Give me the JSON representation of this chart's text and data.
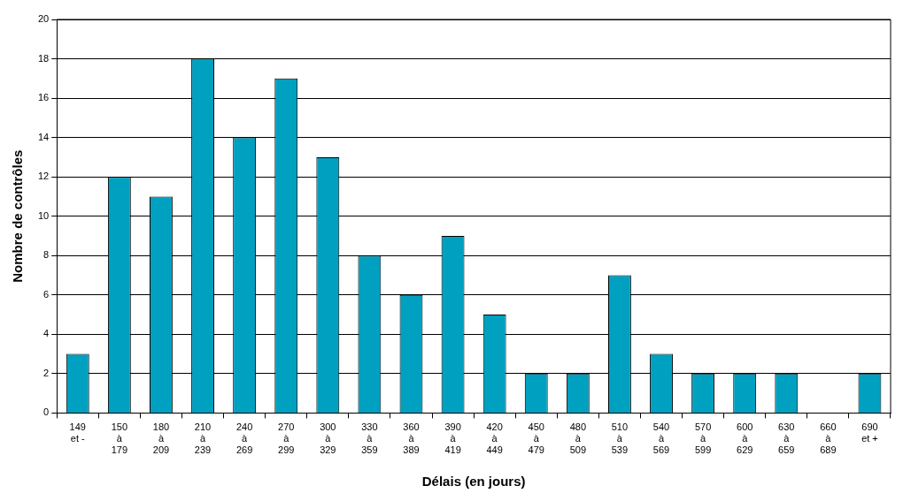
{
  "chart_data": {
    "type": "bar",
    "xlabel": "Délais (en jours)",
    "ylabel": "Nombre de contrôles",
    "categories": [
      "149\net -",
      "150\nà\n179",
      "180\nà\n209",
      "210\nà\n239",
      "240\nà\n269",
      "270\nà\n299",
      "300\nà\n329",
      "330\nà\n359",
      "360\nà\n389",
      "390\nà\n419",
      "420\nà\n449",
      "450\nà\n479",
      "480\nà\n509",
      "510\nà\n539",
      "540\nà\n569",
      "570\nà\n599",
      "600\nà\n629",
      "630\nà\n659",
      "660\nà\n689",
      "690\net +"
    ],
    "values": [
      3,
      12,
      11,
      18,
      14,
      17,
      13,
      8,
      6,
      9,
      5,
      2,
      2,
      7,
      3,
      2,
      2,
      2,
      0,
      2
    ],
    "color": "#00a0c0",
    "ylim": [
      0,
      20
    ],
    "yticks": [
      0,
      2,
      4,
      6,
      8,
      10,
      12,
      14,
      16,
      18,
      20
    ],
    "grid": "y",
    "legend": false
  }
}
